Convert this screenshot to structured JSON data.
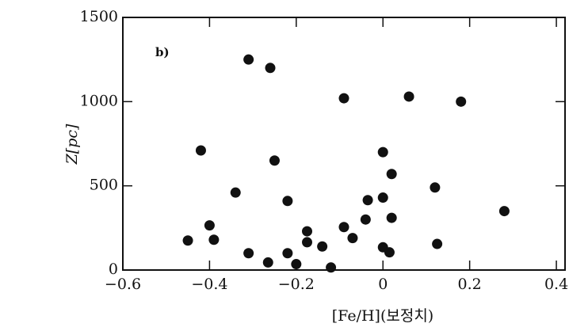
{
  "chart_data": {
    "type": "scatter",
    "annotation": "b)",
    "x_label": "[Fe/H](보정치)",
    "y_label": "Z[pc]",
    "color": "#111111",
    "xlim": [
      -0.6,
      0.42
    ],
    "ylim": [
      0,
      1500
    ],
    "xticks": [
      {
        "value": -0.6,
        "label": "−0.6"
      },
      {
        "value": -0.4,
        "label": "−0.4"
      },
      {
        "value": -0.2,
        "label": "−0.2"
      },
      0,
      0.2,
      0.4
    ],
    "yticks": [
      0,
      500,
      1000,
      1500
    ],
    "x": [
      -0.31,
      -0.26,
      -0.09,
      0.06,
      0.18,
      -0.42,
      0.0,
      -0.25,
      0.02,
      -0.34,
      -0.22,
      0.12,
      -0.035,
      0.0,
      0.28,
      -0.4,
      -0.04,
      0.02,
      -0.45,
      -0.39,
      -0.175,
      -0.09,
      -0.07,
      -0.175,
      -0.14,
      -0.31,
      -0.22,
      -0.265,
      -0.2,
      -0.12,
      0.0,
      0.015,
      0.125
    ],
    "y": [
      1250,
      1200,
      1020,
      1030,
      1000,
      710,
      700,
      650,
      570,
      460,
      410,
      490,
      415,
      430,
      350,
      265,
      300,
      310,
      175,
      180,
      230,
      255,
      190,
      165,
      140,
      100,
      100,
      45,
      35,
      15,
      135,
      105,
      155
    ]
  }
}
